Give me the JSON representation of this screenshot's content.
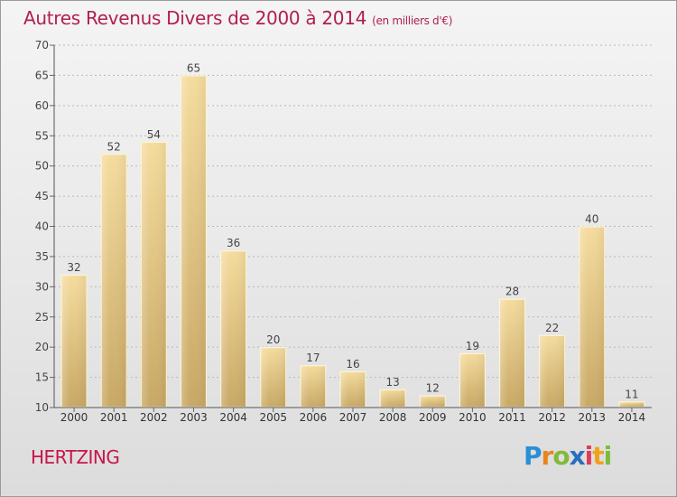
{
  "header": {
    "title": "Autres Revenus Divers de 2000 à 2014",
    "unit": "(en milliers d'€)"
  },
  "footer": {
    "commune": "HERTZING",
    "logo": [
      "P",
      "r",
      "o",
      "x",
      "i",
      "t",
      "i"
    ]
  },
  "colors": {
    "title": "#b0204f",
    "commune": "#c8154a",
    "bar_top": "#f5dc9e",
    "bar_bottom": "#c8a865",
    "bar_highlight": "#fff6dc"
  },
  "chart_data": {
    "type": "bar",
    "categories": [
      "2000",
      "2001",
      "2002",
      "2003",
      "2004",
      "2005",
      "2006",
      "2007",
      "2008",
      "2009",
      "2010",
      "2011",
      "2012",
      "2013",
      "2014"
    ],
    "values": [
      32,
      52,
      54,
      65,
      36,
      20,
      17,
      16,
      13,
      12,
      19,
      28,
      22,
      40,
      11
    ],
    "title": "Autres Revenus Divers de 2000 à 2014",
    "subtitle": "(en milliers d'€)",
    "ylim": [
      10,
      70
    ],
    "yticks": [
      10,
      15,
      20,
      25,
      30,
      35,
      40,
      45,
      50,
      55,
      60,
      65,
      70
    ],
    "grid": "horizontal dotted"
  }
}
